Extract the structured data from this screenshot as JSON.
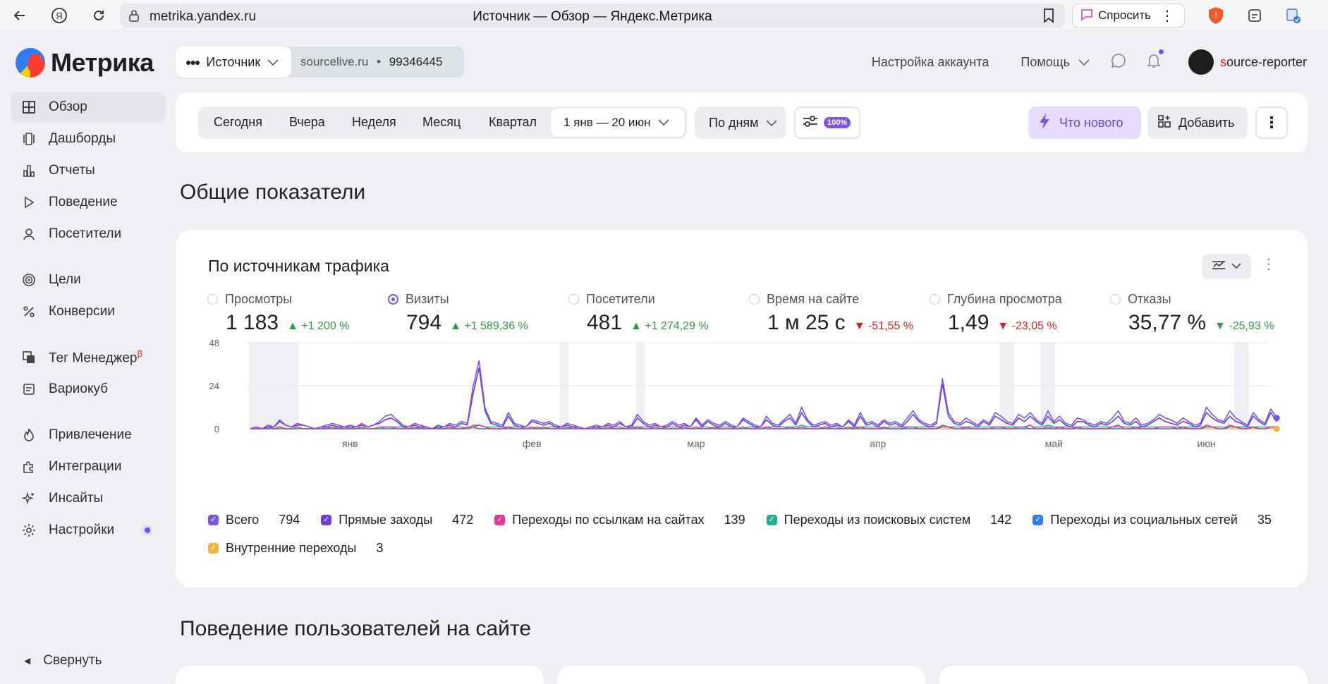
{
  "browser": {
    "url": "metrika.yandex.ru",
    "tab_title": "Источник — Обзор — Яндекс.Метрика",
    "ask_label": "Спросить"
  },
  "sidebar": {
    "logo_text": "Метрика",
    "items": [
      {
        "label": "Обзор",
        "icon": "grid-icon",
        "active": true
      },
      {
        "label": "Дашборды",
        "icon": "dashboards-icon"
      },
      {
        "label": "Отчеты",
        "icon": "bar-chart-icon"
      },
      {
        "label": "Поведение",
        "icon": "play-icon"
      },
      {
        "label": "Посетители",
        "icon": "person-icon"
      },
      {
        "label": "Цели",
        "icon": "target-icon"
      },
      {
        "label": "Конверсии",
        "icon": "percent-icon"
      },
      {
        "label": "Тег Менеджер",
        "icon": "tag-manager-icon",
        "beta": "β"
      },
      {
        "label": "Вариокуб",
        "icon": "variocube-icon"
      },
      {
        "label": "Привлечение",
        "icon": "flame-icon"
      },
      {
        "label": "Интеграции",
        "icon": "puzzle-icon"
      },
      {
        "label": "Инсайты",
        "icon": "sparkle-icon"
      },
      {
        "label": "Настройки",
        "icon": "gear-icon"
      }
    ],
    "collapse_label": "Свернуть"
  },
  "header": {
    "counter_select": "Источник",
    "site": "sourcelive.ru",
    "counter_id": "99346445",
    "account_settings": "Настройка аккаунта",
    "help": "Помощь",
    "username_first": "s",
    "username_rest": "ource-reporter"
  },
  "period": {
    "options": [
      "Сегодня",
      "Вчера",
      "Неделя",
      "Месяц",
      "Квартал"
    ],
    "range": "1 янв — 20 июн",
    "grouping": "По дням",
    "sampling": "100%",
    "whats_new": "Что нового",
    "add": "Добавить"
  },
  "sections": {
    "overview": "Общие показатели",
    "behavior": "Поведение пользователей на сайте"
  },
  "card": {
    "title": "По источникам трафика",
    "metrics": [
      {
        "label": "Просмотры",
        "value": "1 183",
        "delta": "+1 200 %",
        "trend": "up",
        "selected": false
      },
      {
        "label": "Визиты",
        "value": "794",
        "delta": "+1 589,36 %",
        "trend": "up",
        "selected": true
      },
      {
        "label": "Посетители",
        "value": "481",
        "delta": "+1 274,29 %",
        "trend": "up",
        "selected": false
      },
      {
        "label": "Время на сайте",
        "value": "1 м 25 с",
        "delta": "-51,55 %",
        "trend": "down",
        "selected": false
      },
      {
        "label": "Глубина просмотра",
        "value": "1,49",
        "delta": "-23,05 %",
        "trend": "down",
        "selected": false
      },
      {
        "label": "Отказы",
        "value": "35,77 %",
        "delta": "-25,93 %",
        "trend": "good-down",
        "selected": false
      }
    ],
    "legend": [
      {
        "label": "Всего",
        "value": "794",
        "color": "#7a55e8"
      },
      {
        "label": "Прямые заходы",
        "value": "472",
        "color": "#6a3fd9"
      },
      {
        "label": "Переходы по ссылкам на сайтах",
        "value": "139",
        "color": "#e8348f"
      },
      {
        "label": "Переходы из поисковых систем",
        "value": "142",
        "color": "#1fb28a"
      },
      {
        "label": "Переходы из социальных сетей",
        "value": "35",
        "color": "#2e7cf6"
      },
      {
        "label": "Внутренние переходы",
        "value": "3",
        "color": "#f5b13d"
      }
    ]
  },
  "chart_data": {
    "type": "line",
    "y_ticks": [
      "0",
      "24",
      "48"
    ],
    "ylim": [
      0,
      48
    ],
    "x_tick_labels": [
      "янв",
      "фев",
      "мар",
      "апр",
      "май",
      "июн"
    ],
    "x_tick_days": [
      17,
      48,
      76,
      107,
      137,
      163
    ],
    "days": 172,
    "series": [
      {
        "name": "Всего",
        "color": "#7a55e8",
        "values": [
          0,
          1,
          0,
          2,
          1,
          5,
          2,
          1,
          3,
          2,
          1,
          0,
          1,
          2,
          3,
          2,
          1,
          2,
          1,
          3,
          1,
          2,
          4,
          7,
          8,
          5,
          2,
          1,
          3,
          2,
          1,
          0,
          2,
          1,
          3,
          2,
          4,
          3,
          24,
          38,
          12,
          4,
          3,
          2,
          9,
          3,
          2,
          1,
          5,
          4,
          3,
          4,
          2,
          1,
          3,
          2,
          1,
          0,
          1,
          2,
          1,
          3,
          2,
          4,
          1,
          2,
          8,
          4,
          2,
          3,
          1,
          2,
          4,
          2,
          3,
          1,
          6,
          2,
          5,
          3,
          2,
          4,
          2,
          1,
          6,
          4,
          2,
          1,
          7,
          3,
          2,
          5,
          8,
          3,
          12,
          5,
          2,
          3,
          4,
          2,
          3,
          1,
          5,
          2,
          9,
          3,
          4,
          2,
          5,
          3,
          4,
          2,
          6,
          10,
          5,
          3,
          2,
          4,
          28,
          9,
          4,
          3,
          6,
          4,
          2,
          5,
          3,
          9,
          7,
          4,
          3,
          8,
          6,
          9,
          5,
          3,
          10,
          4,
          7,
          3,
          2,
          6,
          5,
          3,
          2,
          4,
          3,
          6,
          10,
          4,
          3,
          6,
          2,
          3,
          5,
          8,
          6,
          5,
          3,
          6,
          4,
          2,
          3,
          12,
          8,
          5,
          4,
          10,
          6,
          4,
          2,
          9,
          5,
          3,
          11,
          6
        ],
        "peaks_note": ""
      },
      {
        "name": "Прямые заходы",
        "color": "#6a3fd9",
        "values": [
          0,
          1,
          0,
          1,
          1,
          4,
          2,
          1,
          2,
          2,
          1,
          0,
          1,
          1,
          2,
          1,
          1,
          1,
          1,
          2,
          1,
          2,
          3,
          5,
          6,
          4,
          1,
          1,
          2,
          1,
          1,
          0,
          1,
          1,
          2,
          1,
          3,
          2,
          20,
          34,
          10,
          3,
          2,
          1,
          7,
          2,
          1,
          1,
          4,
          3,
          2,
          3,
          1,
          1,
          2,
          1,
          1,
          0,
          1,
          1,
          1,
          2,
          1,
          3,
          1,
          1,
          6,
          3,
          1,
          2,
          1,
          1,
          3,
          1,
          2,
          1,
          5,
          1,
          4,
          2,
          1,
          3,
          1,
          1,
          5,
          3,
          1,
          1,
          5,
          2,
          1,
          4,
          6,
          2,
          9,
          4,
          1,
          2,
          3,
          1,
          2,
          1,
          4,
          1,
          7,
          2,
          3,
          1,
          4,
          2,
          3,
          1,
          4,
          8,
          4,
          2,
          1,
          3,
          25,
          7,
          3,
          2,
          4,
          3,
          1,
          4,
          2,
          7,
          5,
          3,
          2,
          6,
          4,
          7,
          4,
          2,
          7,
          3,
          5,
          2,
          1,
          4,
          4,
          2,
          1,
          3,
          2,
          4,
          7,
          3,
          2,
          4,
          1,
          2,
          4,
          6,
          4,
          3,
          2,
          4,
          3,
          1,
          2,
          9,
          6,
          4,
          3,
          7,
          4,
          3,
          1,
          7,
          4,
          2,
          9,
          4
        ]
      },
      {
        "name": "Переходы по ссылкам на сайтах",
        "color": "#e8348f",
        "values": [
          0,
          0,
          0,
          0,
          0,
          1,
          0,
          0,
          1,
          0,
          0,
          0,
          0,
          0,
          1,
          0,
          0,
          0,
          0,
          1,
          0,
          0,
          1,
          1,
          1,
          0,
          0,
          0,
          1,
          0,
          0,
          0,
          0,
          0,
          1,
          0,
          0,
          1,
          1,
          2,
          1,
          0,
          0,
          0,
          1,
          0,
          0,
          0,
          1,
          0,
          1,
          0,
          0,
          0,
          1,
          0,
          0,
          0,
          0,
          0,
          0,
          1,
          0,
          0,
          0,
          0,
          1,
          0,
          0,
          1,
          0,
          0,
          0,
          0,
          1,
          0,
          1,
          0,
          0,
          1,
          0,
          0,
          0,
          0,
          1,
          0,
          0,
          0,
          1,
          0,
          0,
          0,
          1,
          0,
          1,
          0,
          0,
          0,
          1,
          0,
          0,
          0,
          1,
          0,
          1,
          0,
          0,
          0,
          1,
          0,
          0,
          0,
          1,
          1,
          0,
          0,
          0,
          0,
          2,
          1,
          0,
          0,
          1,
          0,
          0,
          0,
          0,
          1,
          1,
          0,
          0,
          1,
          1,
          2,
          0,
          0,
          1,
          0,
          1,
          0,
          0,
          1,
          0,
          0,
          0,
          0,
          0,
          1,
          2,
          0,
          0,
          1,
          0,
          0,
          0,
          1,
          1,
          1,
          0,
          1,
          0,
          0,
          0,
          2,
          1,
          0,
          0,
          2,
          1,
          0,
          0,
          1,
          0,
          0,
          1,
          1
        ]
      },
      {
        "name": "Переходы из поисковых систем",
        "color": "#1fb28a",
        "values": [
          0,
          0,
          0,
          1,
          0,
          0,
          0,
          0,
          0,
          0,
          0,
          0,
          0,
          1,
          0,
          1,
          0,
          1,
          0,
          0,
          0,
          0,
          0,
          1,
          1,
          1,
          1,
          0,
          0,
          1,
          0,
          0,
          1,
          0,
          0,
          1,
          1,
          0,
          2,
          2,
          1,
          1,
          1,
          1,
          1,
          1,
          1,
          0,
          0,
          1,
          0,
          1,
          1,
          0,
          0,
          1,
          0,
          0,
          0,
          1,
          0,
          0,
          1,
          1,
          0,
          1,
          1,
          1,
          1,
          0,
          0,
          1,
          1,
          1,
          0,
          0,
          0,
          1,
          1,
          0,
          1,
          1,
          1,
          0,
          0,
          1,
          1,
          0,
          1,
          1,
          1,
          1,
          1,
          1,
          2,
          1,
          1,
          1,
          0,
          1,
          1,
          0,
          0,
          1,
          1,
          1,
          1,
          1,
          0,
          1,
          1,
          1,
          1,
          1,
          1,
          1,
          1,
          1,
          1,
          1,
          1,
          1,
          1,
          1,
          1,
          1,
          1,
          1,
          1,
          1,
          1,
          1,
          1,
          0,
          1,
          1,
          2,
          1,
          1,
          1,
          1,
          1,
          1,
          1,
          1,
          1,
          1,
          1,
          1,
          1,
          1,
          1,
          1,
          1,
          1,
          1,
          1,
          1,
          1,
          1,
          1,
          1,
          1,
          1,
          1,
          1,
          1,
          1,
          1,
          1,
          1,
          1,
          1,
          1,
          1,
          1
        ]
      },
      {
        "name": "Переходы из социальных сетей",
        "color": "#2e7cf6",
        "values": [
          0,
          0,
          0,
          0,
          0,
          0,
          0,
          0,
          0,
          0,
          0,
          0,
          0,
          0,
          0,
          0,
          0,
          0,
          0,
          0,
          0,
          0,
          0,
          0,
          0,
          0,
          0,
          0,
          0,
          0,
          0,
          0,
          0,
          0,
          0,
          0,
          0,
          0,
          1,
          0,
          0,
          0,
          0,
          0,
          0,
          0,
          0,
          0,
          0,
          0,
          0,
          0,
          0,
          0,
          0,
          0,
          0,
          0,
          0,
          0,
          0,
          0,
          0,
          0,
          0,
          0,
          0,
          0,
          0,
          0,
          0,
          0,
          0,
          0,
          0,
          0,
          0,
          0,
          0,
          0,
          0,
          0,
          0,
          0,
          0,
          0,
          0,
          0,
          0,
          0,
          0,
          0,
          0,
          0,
          0,
          0,
          0,
          0,
          0,
          0,
          0,
          0,
          0,
          0,
          0,
          0,
          0,
          0,
          0,
          0,
          0,
          0,
          0,
          0,
          0,
          0,
          0,
          0,
          1,
          1,
          0,
          0,
          0,
          0,
          0,
          0,
          0,
          0,
          0,
          0,
          0,
          0,
          0,
          0,
          0,
          0,
          0,
          0,
          0,
          0,
          0,
          0,
          0,
          0,
          0,
          0,
          0,
          0,
          0,
          0,
          0,
          0,
          0,
          0,
          0,
          0,
          0,
          0,
          0,
          0,
          0,
          0,
          0,
          1,
          1,
          0,
          0,
          1,
          1,
          0,
          0,
          1,
          0,
          0,
          1,
          1
        ]
      },
      {
        "name": "Внутренние переходы",
        "color": "#f5b13d",
        "values": [
          0,
          0,
          0,
          0,
          0,
          0,
          0,
          0,
          0,
          0,
          0,
          0,
          0,
          0,
          0,
          0,
          0,
          0,
          0,
          0,
          0,
          0,
          0,
          0,
          0,
          0,
          0,
          0,
          0,
          0,
          0,
          0,
          0,
          0,
          0,
          0,
          0,
          0,
          0,
          0,
          0,
          0,
          0,
          0,
          0,
          0,
          0,
          0,
          0,
          0,
          0,
          0,
          0,
          0,
          0,
          0,
          0,
          0,
          0,
          0,
          0,
          0,
          0,
          0,
          0,
          0,
          0,
          0,
          0,
          0,
          0,
          0,
          0,
          0,
          0,
          0,
          0,
          0,
          0,
          0,
          0,
          0,
          0,
          0,
          0,
          0,
          0,
          0,
          0,
          0,
          0,
          0,
          0,
          0,
          0,
          0,
          0,
          0,
          0,
          0,
          0,
          0,
          0,
          0,
          0,
          0,
          0,
          0,
          0,
          0,
          0,
          0,
          0,
          0,
          0,
          0,
          0,
          0,
          0,
          0,
          0,
          0,
          0,
          0,
          0,
          0,
          0,
          0,
          0,
          0,
          0,
          0,
          0,
          0,
          0,
          0,
          0,
          0,
          0,
          0,
          0,
          0,
          0,
          0,
          0,
          0,
          0,
          0,
          0,
          0,
          0,
          0,
          0,
          0,
          0,
          0,
          0,
          0,
          0,
          0,
          0,
          0,
          0,
          0,
          0,
          0,
          0,
          0,
          0,
          0,
          0,
          0,
          0,
          0,
          0,
          0
        ]
      }
    ],
    "shaded_day_ranges": [
      [
        0,
        8
      ],
      [
        53,
        54
      ],
      [
        66,
        67
      ],
      [
        128,
        130
      ],
      [
        135,
        137
      ],
      [
        168,
        170
      ]
    ]
  }
}
